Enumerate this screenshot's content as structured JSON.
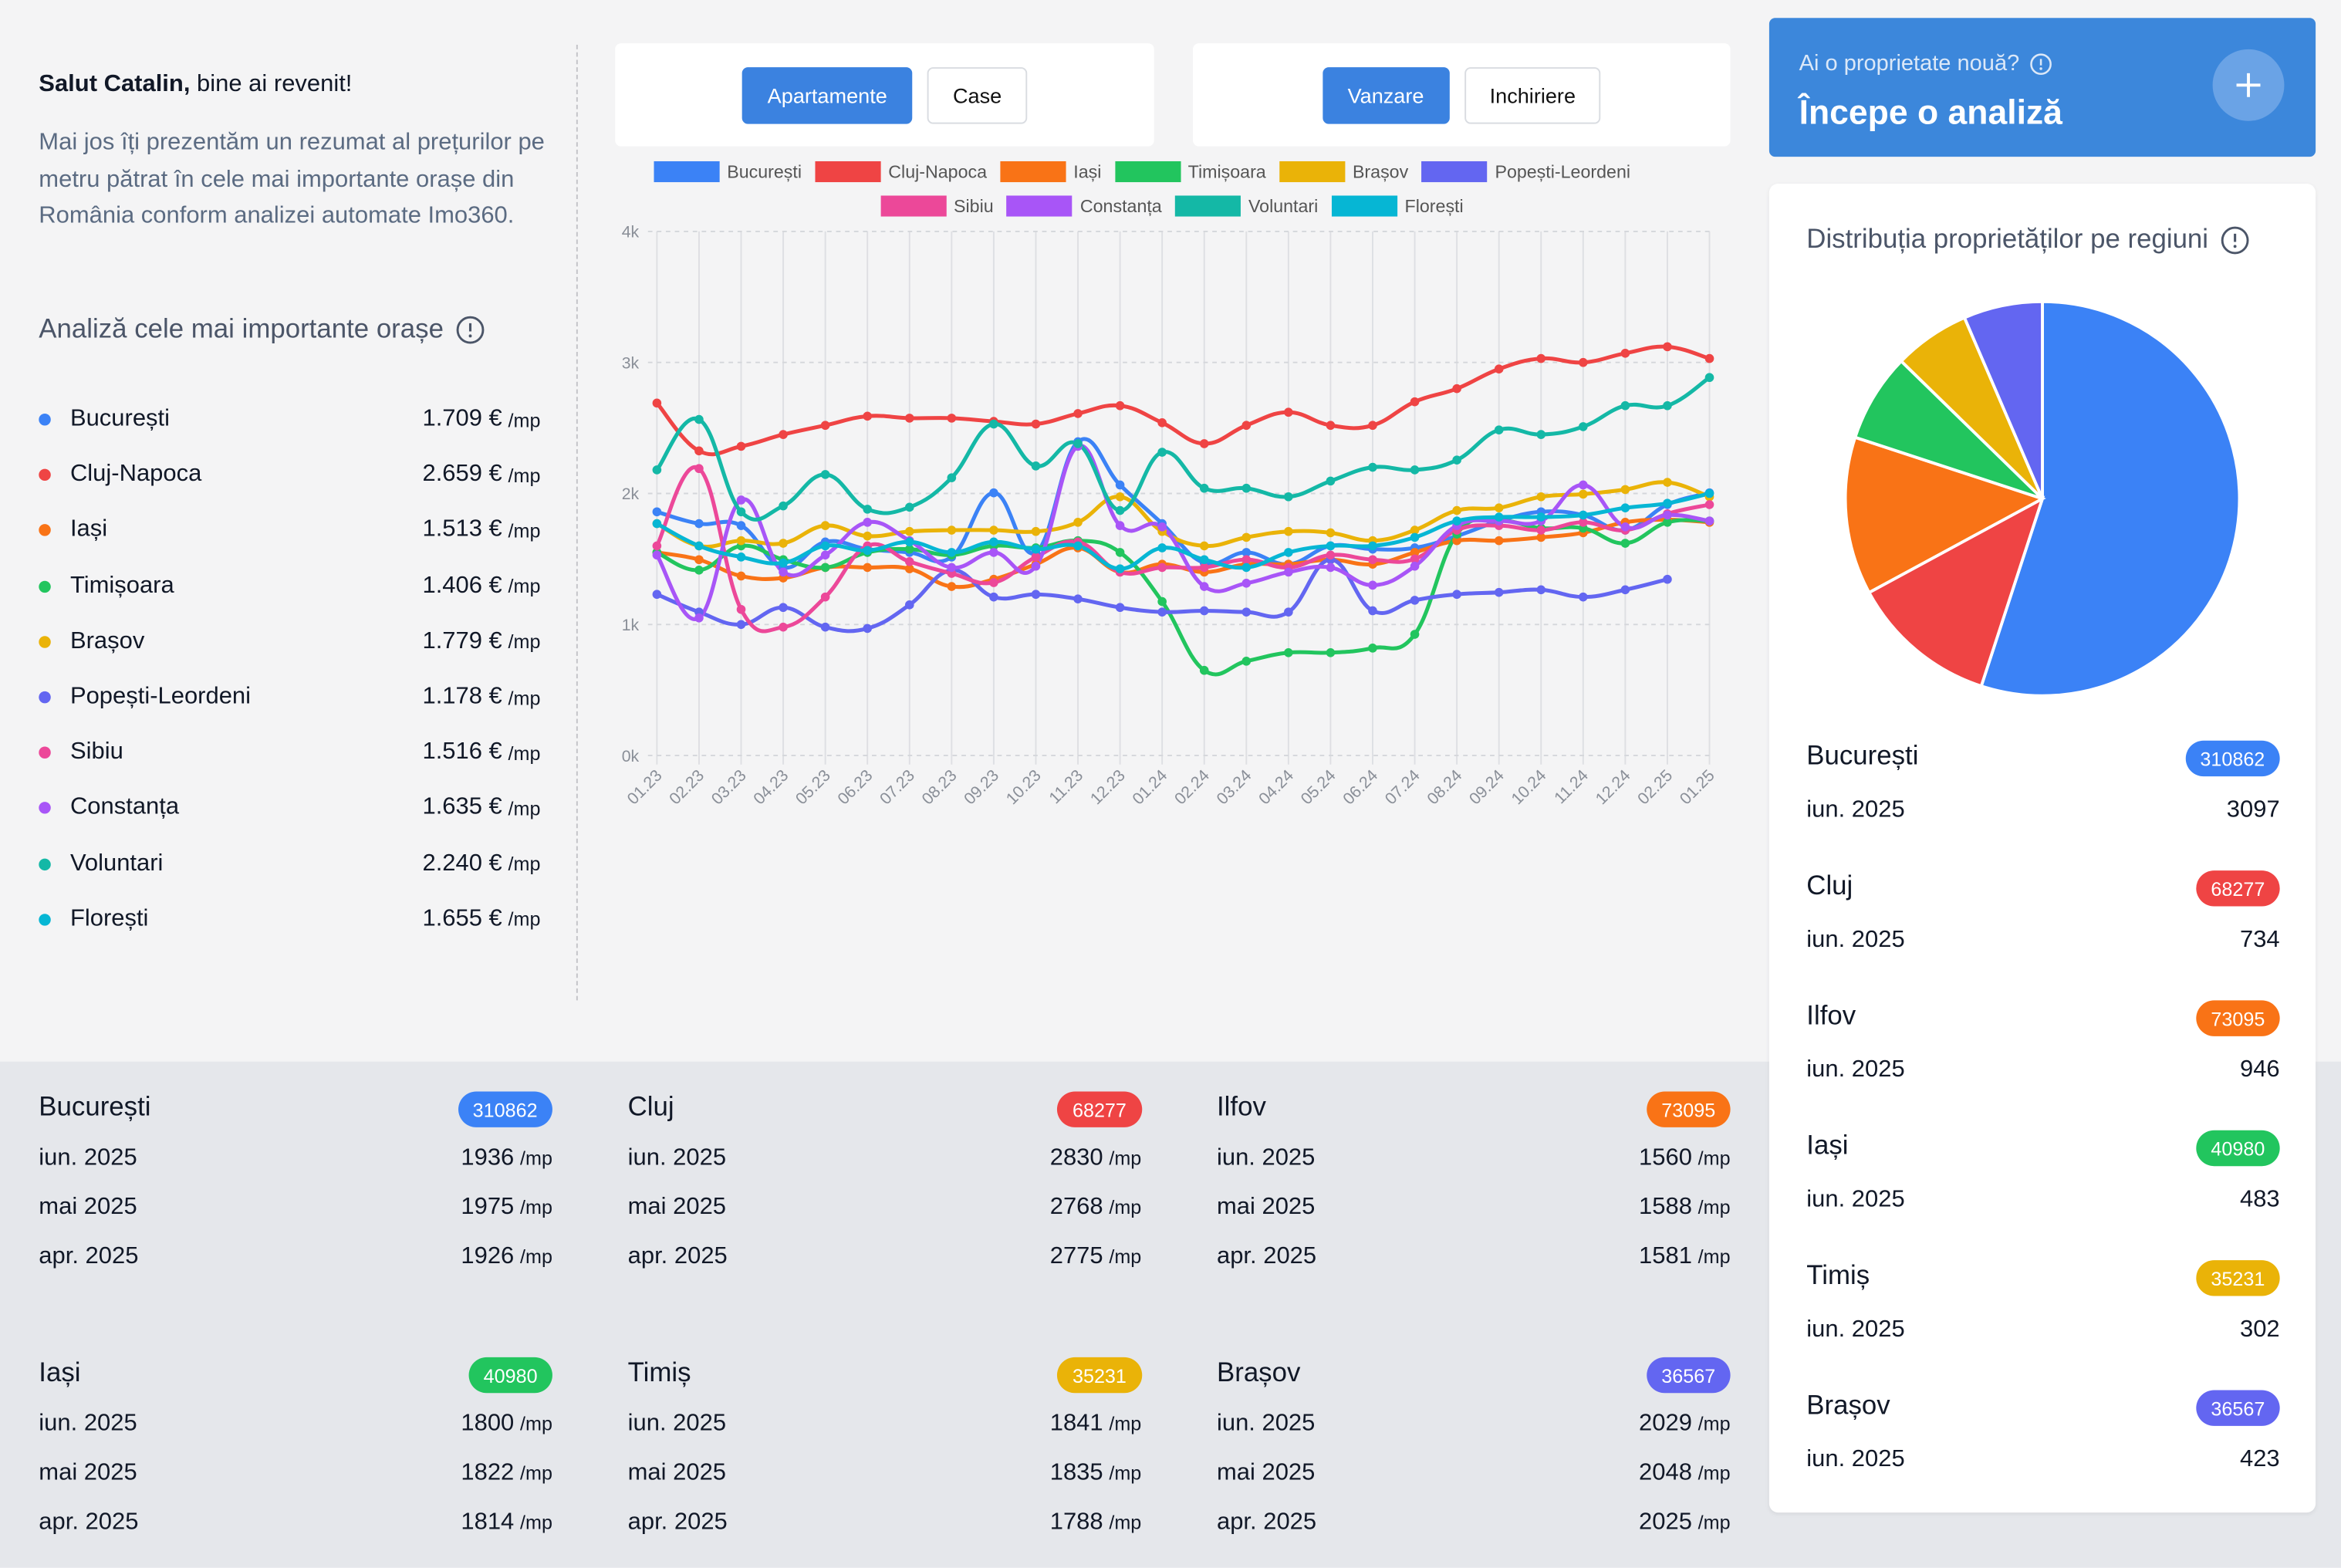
{
  "header": {
    "greeting_name": "Salut Catalin,",
    "greeting_rest": "bine ai revenit!",
    "intro": "Mai jos îți prezentăm un rezumat al prețurilor pe metru pătrat în cele mai importante orașe din România conform analizei automate Imo360.",
    "section_title": "Analiză cele mai importante orașe"
  },
  "city_prices": {
    "unit": "/mp",
    "prices": [
      "1.709 €",
      "2.659 €",
      "1.513 €",
      "1.406 €",
      "1.779 €",
      "1.178 €",
      "1.516 €",
      "1.635 €",
      "2.240 €",
      "1.655 €"
    ]
  },
  "filters": {
    "property_types": [
      "Apartamente",
      "Case"
    ],
    "transaction_types": [
      "Vanzare",
      "Inchiriere"
    ]
  },
  "cta": {
    "question": "Ai o proprietate nouă?",
    "action": "Începe o analiză"
  },
  "distribution_items": [
    {
      "date": "iun. 2025",
      "count": 3097
    },
    {
      "date": "iun. 2025",
      "count": 734
    },
    {
      "date": "iun. 2025",
      "count": 946
    },
    {
      "date": "iun. 2025",
      "count": 483
    },
    {
      "date": "iun. 2025",
      "count": 302
    },
    {
      "date": "iun. 2025",
      "count": 423
    }
  ],
  "region_cards": [
    {
      "rows": [
        {
          "month": "iun. 2025",
          "price": 1936
        },
        {
          "month": "mai 2025",
          "price": 1975
        },
        {
          "month": "apr. 2025",
          "price": 1926
        }
      ]
    },
    {
      "rows": [
        {
          "month": "iun. 2025",
          "price": 2830
        },
        {
          "month": "mai 2025",
          "price": 2768
        },
        {
          "month": "apr. 2025",
          "price": 2775
        }
      ]
    },
    {
      "rows": [
        {
          "month": "iun. 2025",
          "price": 1560
        },
        {
          "month": "mai 2025",
          "price": 1588
        },
        {
          "month": "apr. 2025",
          "price": 1581
        }
      ]
    },
    {
      "rows": [
        {
          "month": "iun. 2025",
          "price": 1800
        },
        {
          "month": "mai 2025",
          "price": 1822
        },
        {
          "month": "apr. 2025",
          "price": 1814
        }
      ]
    },
    {
      "rows": [
        {
          "month": "iun. 2025",
          "price": 1841
        },
        {
          "month": "mai 2025",
          "price": 1835
        },
        {
          "month": "apr. 2025",
          "price": 1788
        }
      ]
    },
    {
      "rows": [
        {
          "month": "iun. 2025",
          "price": 2029
        },
        {
          "month": "mai 2025",
          "price": 2048
        },
        {
          "month": "apr. 2025",
          "price": 2025
        }
      ]
    }
  ],
  "chart_data": [
    {
      "type": "line",
      "categories": [
        "01.23",
        "02.23",
        "03.23",
        "04.23",
        "05.23",
        "06.23",
        "07.23",
        "08.23",
        "09.23",
        "10.23",
        "11.23",
        "12.23",
        "01.24",
        "02.24",
        "03.24",
        "04.24",
        "05.24",
        "06.24",
        "07.24",
        "08.24",
        "09.24",
        "10.24",
        "11.24",
        "12.24",
        "02.25",
        "01.25"
      ],
      "ylim": [
        0,
        4000
      ],
      "yticks": [
        {
          "value": 0,
          "label": "0k"
        },
        {
          "value": 1000,
          "label": "1k"
        },
        {
          "value": 2000,
          "label": "2k"
        },
        {
          "value": 3000,
          "label": "3k"
        },
        {
          "value": 4000,
          "label": "4k"
        }
      ],
      "grid": true,
      "series": [
        {
          "name": "București",
          "color": "#3b82f6",
          "values": [
            1860,
            1770,
            1755,
            1435,
            1630,
            1575,
            1550,
            1515,
            2005,
            1550,
            2395,
            2065,
            1770,
            1470,
            1550,
            1460,
            1600,
            1575,
            1585,
            1675,
            1790,
            1860,
            1835,
            1720,
            1915,
            2005
          ]
        },
        {
          "name": "Cluj-Napoca",
          "color": "#ef4444",
          "values": [
            2690,
            2325,
            2360,
            2450,
            2520,
            2590,
            2575,
            2575,
            2550,
            2530,
            2610,
            2670,
            2540,
            2380,
            2520,
            2620,
            2520,
            2520,
            2700,
            2800,
            2950,
            3030,
            3000,
            3070,
            3120,
            3030
          ]
        },
        {
          "name": "Iași",
          "color": "#f97316",
          "values": [
            1550,
            1495,
            1370,
            1355,
            1435,
            1435,
            1425,
            1290,
            1345,
            1460,
            1585,
            1400,
            1460,
            1400,
            1460,
            1460,
            1495,
            1460,
            1550,
            1640,
            1640,
            1665,
            1700,
            1780,
            1800,
            1780
          ]
        },
        {
          "name": "Timișoara",
          "color": "#22c55e",
          "values": [
            1550,
            1415,
            1600,
            1495,
            1435,
            1550,
            1575,
            1530,
            1600,
            1585,
            1640,
            1550,
            1175,
            650,
            720,
            785,
            785,
            820,
            925,
            1690,
            1790,
            1735,
            1735,
            1620,
            1780,
            1790
          ]
        },
        {
          "name": "Brașov",
          "color": "#eab308",
          "values": [
            1770,
            1600,
            1640,
            1620,
            1755,
            1675,
            1710,
            1720,
            1720,
            1710,
            1780,
            1975,
            1710,
            1600,
            1665,
            1710,
            1700,
            1640,
            1720,
            1870,
            1890,
            1975,
            1995,
            2030,
            2085,
            1975
          ]
        },
        {
          "name": "Popești-Leordeni",
          "color": "#6366f1",
          "values": [
            1230,
            1095,
            1000,
            1130,
            980,
            970,
            1150,
            1415,
            1210,
            1230,
            1195,
            1130,
            1095,
            1105,
            1095,
            1095,
            1495,
            1105,
            1185,
            1230,
            1245,
            1265,
            1210,
            1265,
            1345,
            null
          ]
        },
        {
          "name": "Sibiu",
          "color": "#ec4899",
          "values": [
            1600,
            2190,
            1115,
            980,
            1210,
            1600,
            1480,
            1390,
            1320,
            1515,
            1630,
            1400,
            1435,
            1435,
            1495,
            1435,
            1530,
            1495,
            1500,
            1720,
            1755,
            1720,
            1780,
            1720,
            1845,
            1915
          ]
        },
        {
          "name": "Constanța",
          "color": "#a855f7",
          "values": [
            1530,
            1050,
            1950,
            1400,
            1530,
            1780,
            1640,
            1435,
            1550,
            1445,
            2360,
            1755,
            1745,
            1290,
            1315,
            1400,
            1435,
            1300,
            1445,
            1755,
            1790,
            1790,
            2065,
            1745,
            1835,
            1790
          ]
        },
        {
          "name": "Voluntari",
          "color": "#14b8a6",
          "values": [
            2180,
            2565,
            1860,
            1905,
            2145,
            1880,
            1895,
            2120,
            2530,
            2210,
            2380,
            1870,
            2315,
            2040,
            2040,
            1975,
            2095,
            2200,
            2180,
            2255,
            2485,
            2450,
            2510,
            2670,
            2670,
            2885
          ]
        },
        {
          "name": "Florești",
          "color": "#06b6d4",
          "values": [
            1770,
            1600,
            1515,
            1470,
            1600,
            1565,
            1630,
            1550,
            1630,
            1575,
            1600,
            1425,
            1585,
            1495,
            1435,
            1550,
            1600,
            1600,
            1665,
            1790,
            1820,
            1820,
            1835,
            1890,
            1925,
            2000
          ]
        }
      ]
    },
    {
      "type": "pie",
      "title": "Distribuția proprietăților pe regiuni",
      "categories": [
        "București",
        "Cluj",
        "Ilfov",
        "Iași",
        "Timiș",
        "Brașov"
      ],
      "values": [
        310862,
        68277,
        73095,
        40980,
        35231,
        36567
      ],
      "colors": [
        "#3b82f6",
        "#ef4444",
        "#f97316",
        "#22c55e",
        "#eab308",
        "#6366f1"
      ]
    }
  ]
}
